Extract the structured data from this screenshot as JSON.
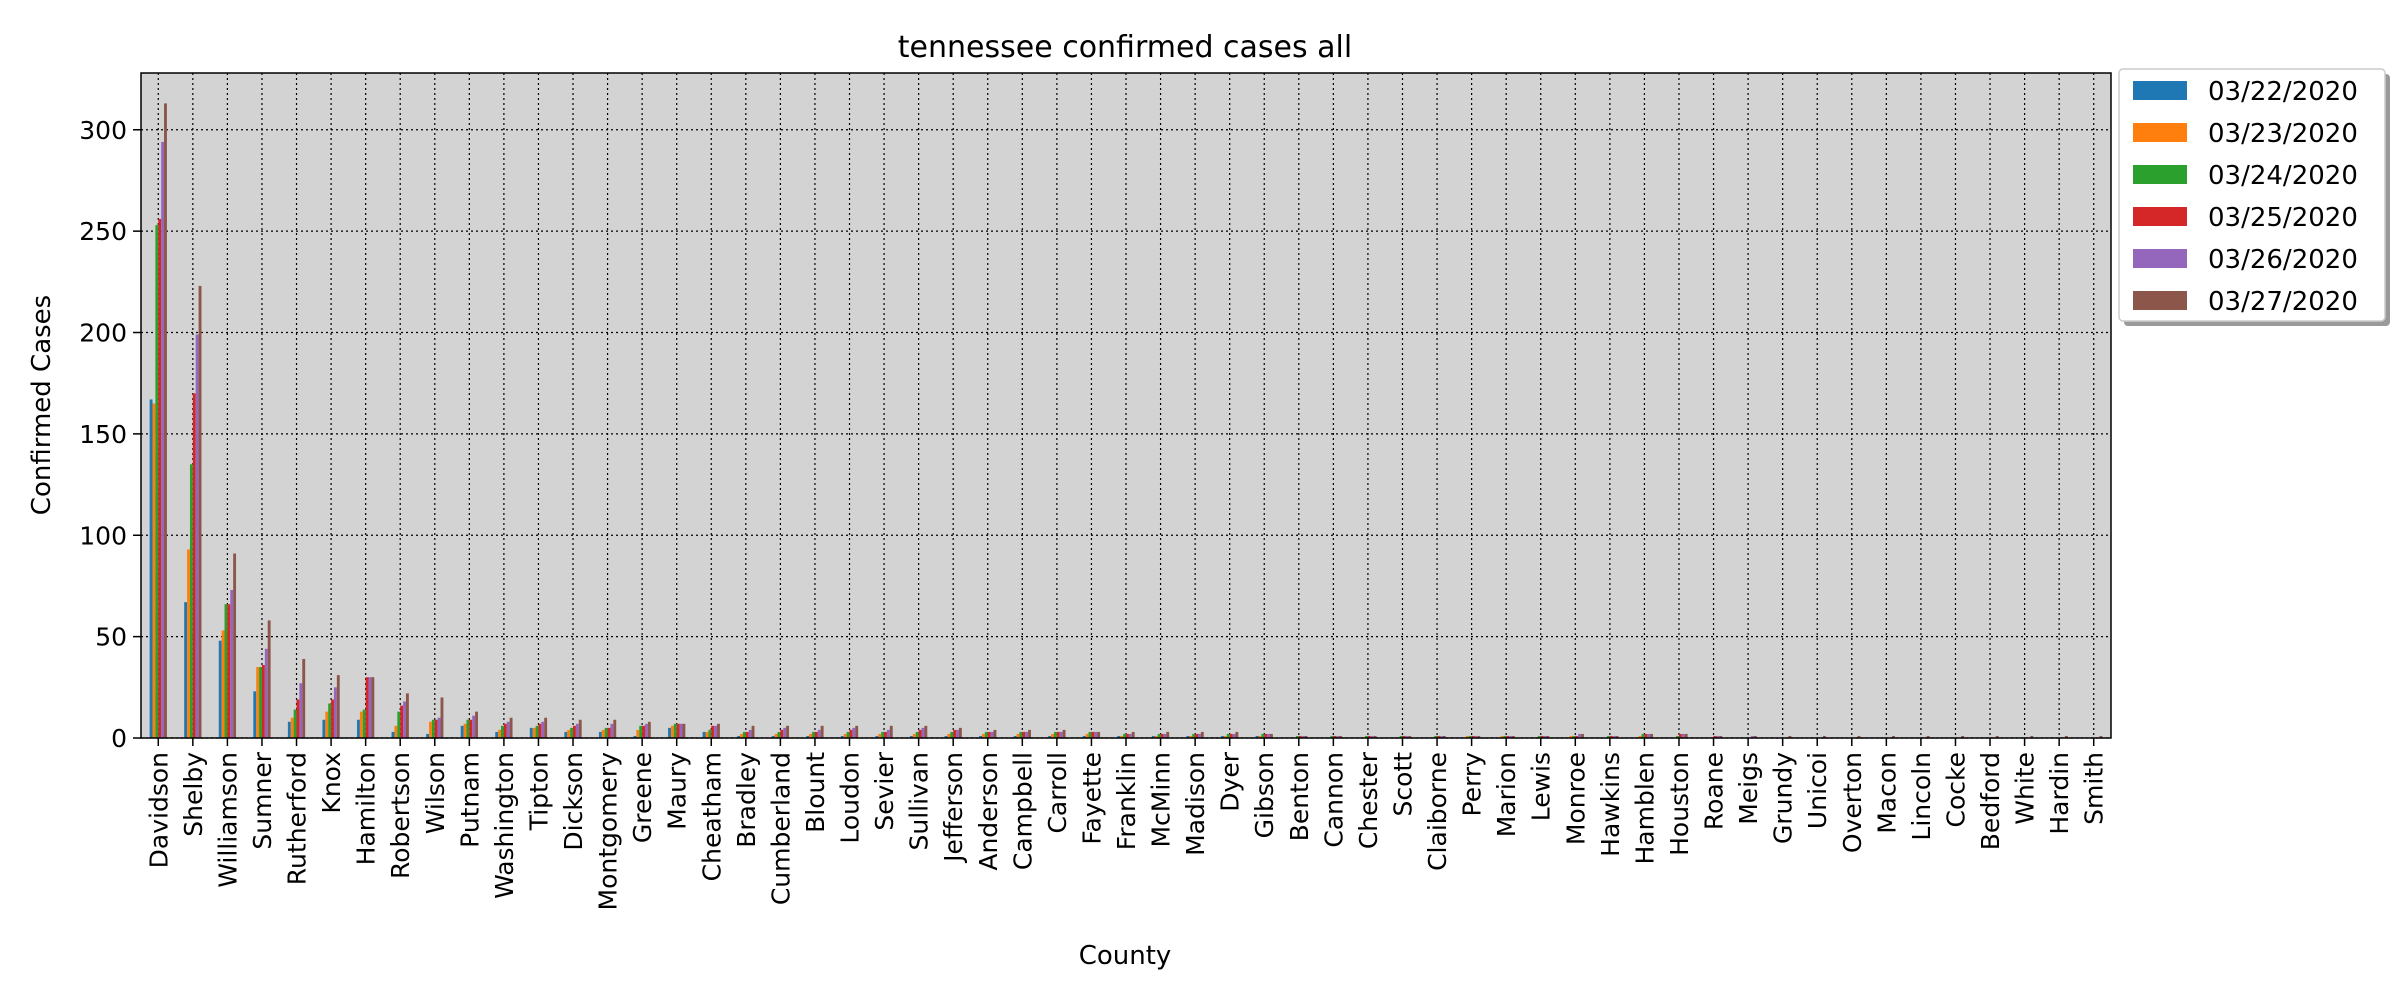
{
  "chart_data": {
    "type": "bar",
    "title": "tennessee confirmed cases all",
    "xlabel": "County",
    "ylabel": "Confirmed Cases",
    "ylim": [
      0,
      328
    ],
    "yticks": [
      0,
      50,
      100,
      150,
      200,
      250,
      300
    ],
    "grid": true,
    "legend_position": "outside-top-right",
    "colors": [
      "#1f77b4",
      "#ff7f0e",
      "#2ca02c",
      "#d62728",
      "#9467bd",
      "#8c564b"
    ],
    "categories": [
      "Davidson",
      "Shelby",
      "Williamson",
      "Sumner",
      "Rutherford",
      "Knox",
      "Hamilton",
      "Robertson",
      "Wilson",
      "Putnam",
      "Washington",
      "Tipton",
      "Dickson",
      "Montgomery",
      "Greene",
      "Maury",
      "Cheatham",
      "Bradley",
      "Cumberland",
      "Blount",
      "Loudon",
      "Sevier",
      "Sullivan",
      "Jefferson",
      "Anderson",
      "Campbell",
      "Carroll",
      "Fayette",
      "Franklin",
      "McMinn",
      "Madison",
      "Dyer",
      "Gibson",
      "Benton",
      "Cannon",
      "Chester",
      "Scott",
      "Claiborne",
      "Perry",
      "Marion",
      "Lewis",
      "Monroe",
      "Hawkins",
      "Hamblen",
      "Houston",
      "Roane",
      "Meigs",
      "Grundy",
      "Unicoi",
      "Overton",
      "Macon",
      "Lincoln",
      "Cocke",
      "Bedford",
      "White",
      "Hardin",
      "Smith"
    ],
    "series": [
      {
        "name": "03/22/2020",
        "values": [
          167,
          67,
          48,
          23,
          8,
          9,
          9,
          3,
          2,
          6,
          3,
          5,
          3,
          3,
          1,
          5,
          3,
          1,
          1,
          1,
          1,
          1,
          1,
          1,
          1,
          1,
          1,
          1,
          1,
          1,
          1,
          1,
          1,
          0,
          0,
          0,
          0,
          0,
          0,
          0,
          0,
          0,
          0,
          0,
          0,
          0,
          0,
          0,
          0,
          0,
          0,
          0,
          0,
          0,
          0,
          0,
          0
        ]
      },
      {
        "name": "03/23/2020",
        "values": [
          165,
          93,
          53,
          35,
          10,
          13,
          13,
          6,
          8,
          7,
          4,
          5,
          4,
          4,
          4,
          6,
          3,
          2,
          2,
          2,
          2,
          2,
          2,
          2,
          2,
          2,
          2,
          2,
          1,
          1,
          1,
          1,
          1,
          0,
          0,
          0,
          0,
          0,
          1,
          1,
          0,
          1,
          0,
          1,
          0,
          0,
          0,
          0,
          0,
          0,
          0,
          0,
          0,
          0,
          0,
          0,
          0
        ]
      },
      {
        "name": "03/24/2020",
        "values": [
          253,
          135,
          66,
          35,
          14,
          17,
          14,
          13,
          9,
          9,
          6,
          6,
          5,
          5,
          6,
          7,
          4,
          3,
          3,
          3,
          3,
          3,
          3,
          3,
          3,
          3,
          3,
          3,
          2,
          2,
          2,
          2,
          2,
          1,
          1,
          1,
          1,
          1,
          1,
          1,
          1,
          1,
          1,
          2,
          1,
          0,
          0,
          0,
          0,
          0,
          0,
          0,
          0,
          0,
          0,
          0,
          0
        ]
      },
      {
        "name": "03/25/2020",
        "values": [
          256,
          170,
          66,
          36,
          19,
          19,
          30,
          16,
          9,
          9,
          7,
          7,
          6,
          5,
          6,
          7,
          6,
          3,
          4,
          3,
          4,
          3,
          4,
          4,
          3,
          3,
          3,
          3,
          2,
          2,
          2,
          2,
          2,
          1,
          1,
          1,
          1,
          1,
          1,
          1,
          1,
          1,
          1,
          2,
          2,
          1,
          0,
          0,
          0,
          0,
          0,
          0,
          0,
          0,
          0,
          0,
          0
        ]
      },
      {
        "name": "03/26/2020",
        "values": [
          294,
          199,
          73,
          44,
          27,
          25,
          30,
          18,
          10,
          11,
          8,
          8,
          7,
          7,
          7,
          7,
          6,
          4,
          5,
          4,
          5,
          4,
          5,
          4,
          3,
          3,
          3,
          3,
          2,
          2,
          2,
          2,
          2,
          1,
          1,
          1,
          1,
          1,
          1,
          1,
          1,
          2,
          1,
          2,
          2,
          1,
          1,
          0,
          0,
          0,
          0,
          0,
          0,
          0,
          0,
          0,
          0
        ]
      },
      {
        "name": "03/27/2020",
        "values": [
          313,
          223,
          91,
          58,
          39,
          31,
          30,
          22,
          20,
          13,
          10,
          10,
          9,
          9,
          8,
          7,
          7,
          6,
          6,
          6,
          6,
          6,
          6,
          5,
          4,
          4,
          4,
          3,
          3,
          3,
          3,
          3,
          2,
          1,
          1,
          1,
          1,
          1,
          1,
          1,
          1,
          2,
          1,
          2,
          2,
          1,
          1,
          1,
          1,
          1,
          1,
          1,
          1,
          1,
          1,
          1,
          1
        ]
      }
    ]
  }
}
